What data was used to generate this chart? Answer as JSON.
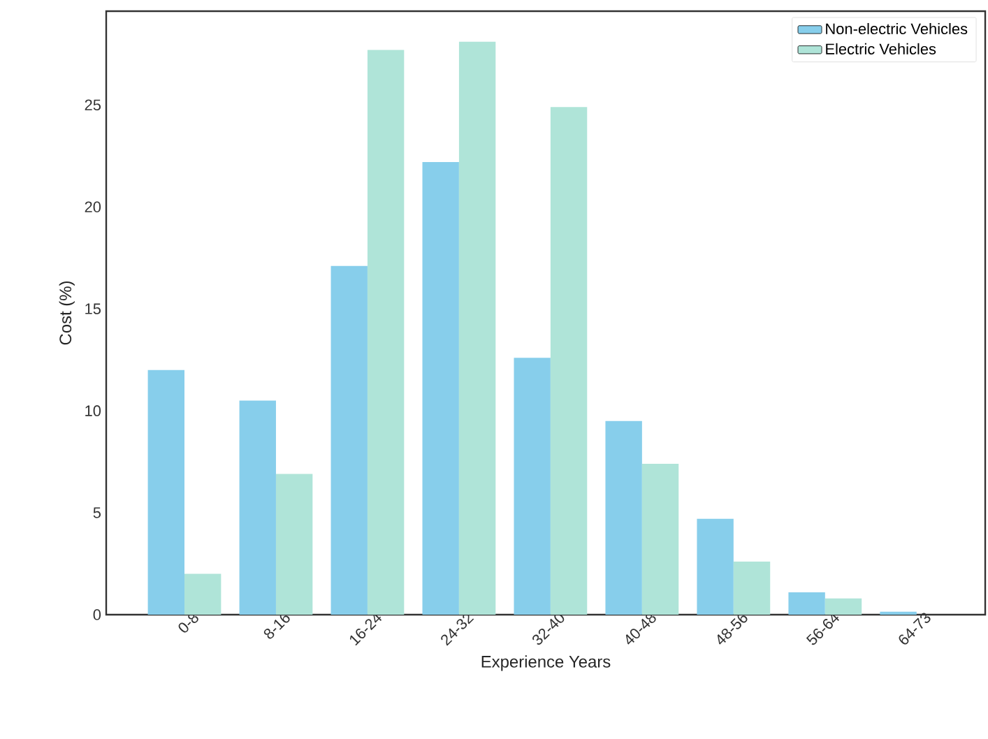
{
  "chart_data": {
    "type": "bar",
    "xlabel": "Experience Years",
    "ylabel": "Cost (%)",
    "categories": [
      "0-8",
      "8-16",
      "16-24",
      "24-32",
      "32-40",
      "40-48",
      "48-56",
      "56-64",
      "64-73"
    ],
    "series": [
      {
        "name": "Non-electric Vehicles",
        "color": "#87ceeb",
        "values": [
          12.0,
          10.5,
          17.1,
          22.2,
          12.6,
          9.5,
          4.7,
          1.1,
          0.15
        ]
      },
      {
        "name": "Electric Vehicles",
        "color": "#afe4d8",
        "values": [
          2.0,
          6.9,
          27.7,
          28.1,
          24.9,
          7.4,
          2.6,
          0.8,
          0
        ]
      }
    ],
    "ylim": [
      0,
      29.6
    ],
    "yticks": [
      0,
      5,
      10,
      15,
      20,
      25
    ],
    "grid": false,
    "legend": "top right"
  }
}
